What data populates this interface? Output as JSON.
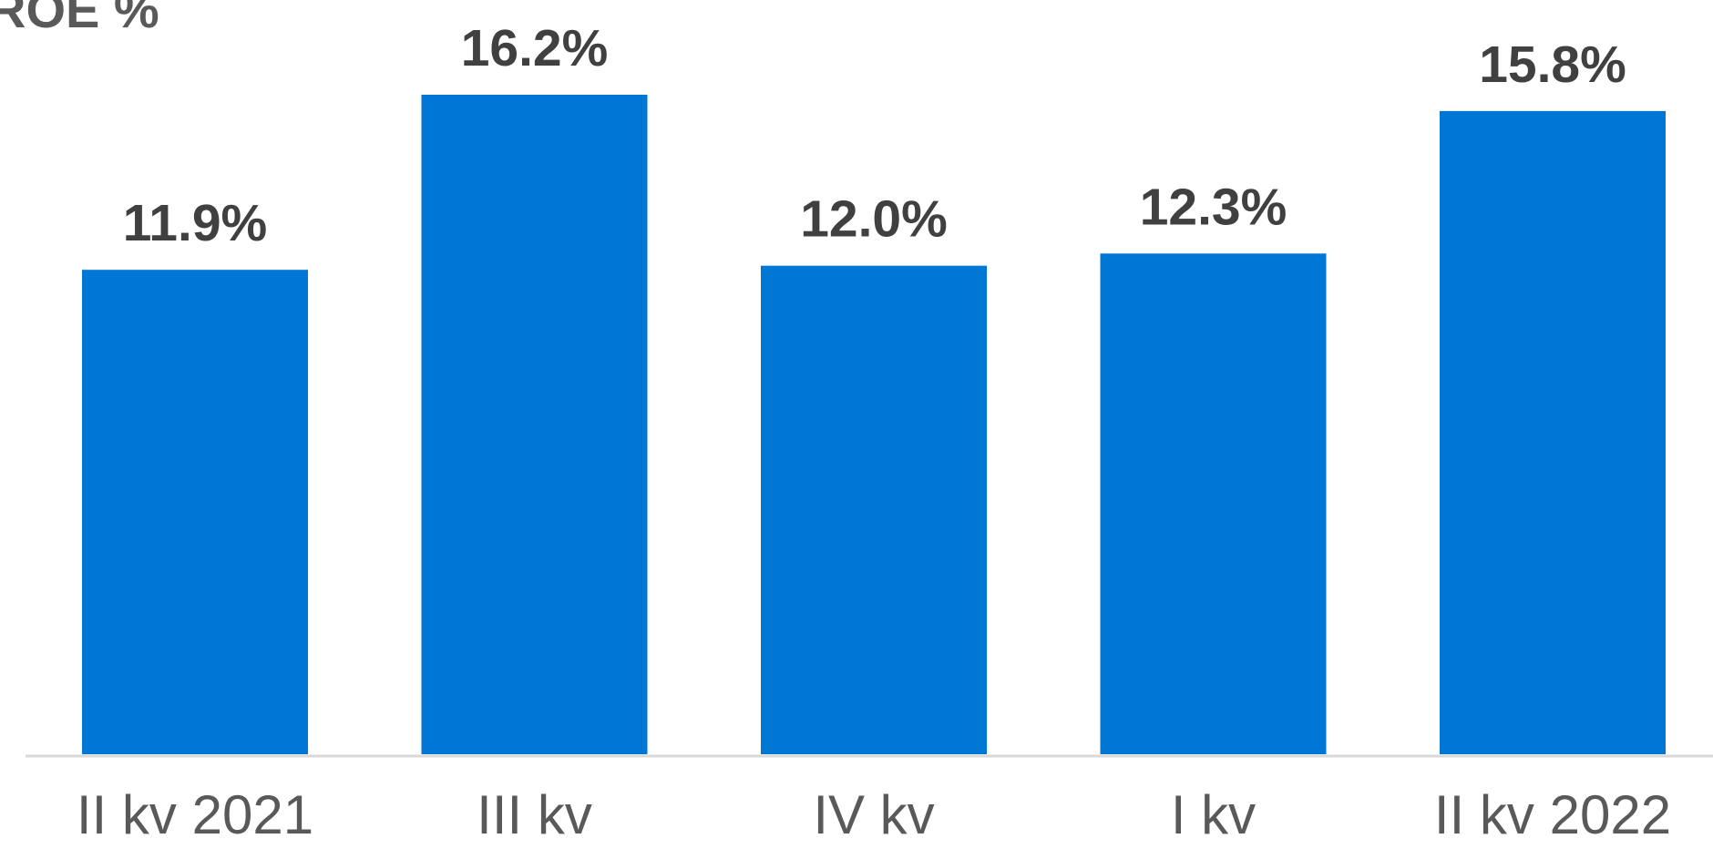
{
  "chart_data": {
    "type": "bar",
    "title": "ROE %",
    "categories": [
      "II kv 2021",
      "III kv",
      "IV kv",
      "I kv",
      "II kv 2022"
    ],
    "values": [
      11.9,
      16.2,
      12.0,
      12.3,
      15.8
    ],
    "value_labels": [
      "11.9%",
      "16.2%",
      "12.0%",
      "12.3%",
      "15.8%"
    ],
    "color": "#0077d4"
  }
}
